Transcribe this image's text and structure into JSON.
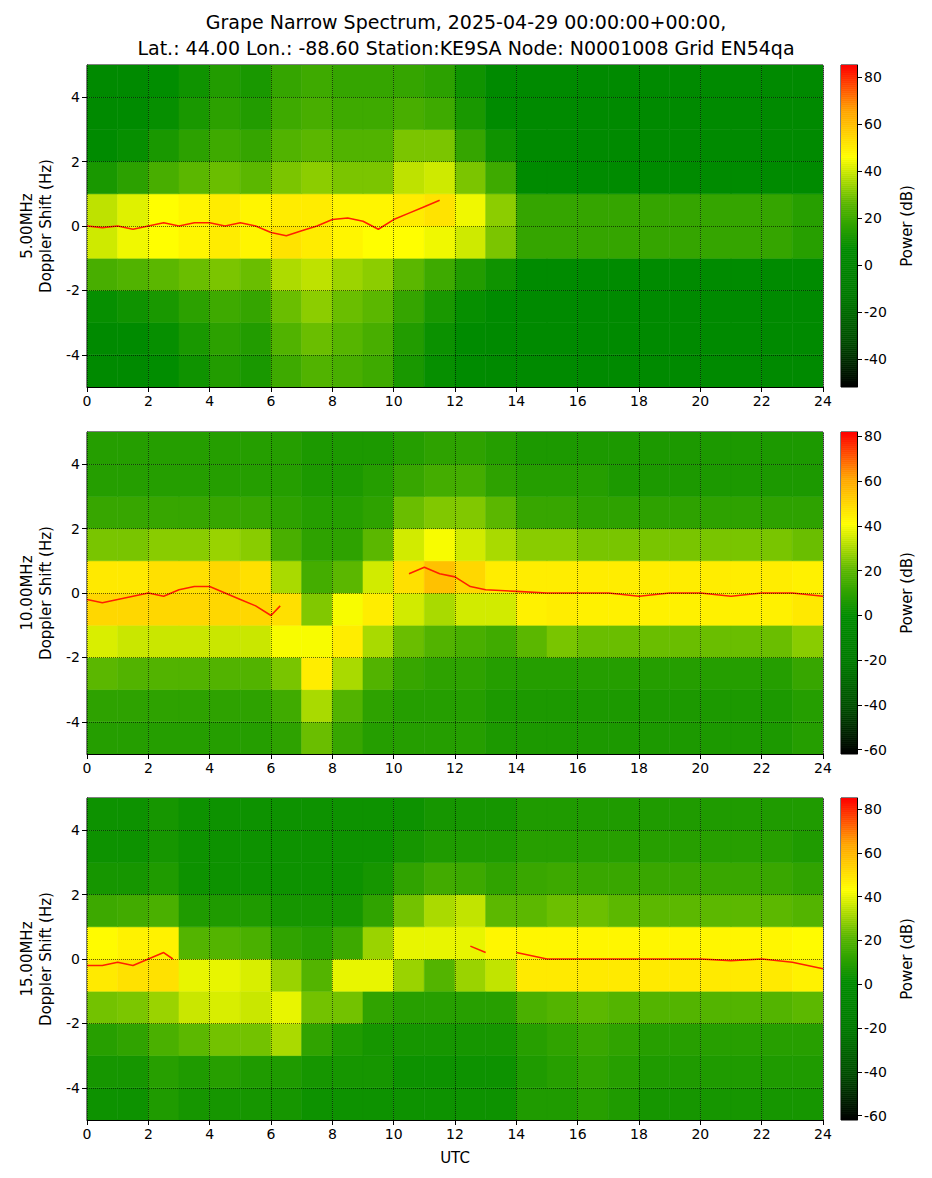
{
  "chart_data": [
    {
      "type": "heatmap",
      "title": "Grape Narrow Spectrum, 2025-04-29 00:00:00+00:00,\nLat.: 44.00 Lon.: -88.60 Station:KE9SA Node: N0001008 Grid EN54qa",
      "ylabel": "5.00MHz\nDoppler Shift (Hz)",
      "xlim": [
        0,
        24
      ],
      "xticks": [
        0,
        2,
        4,
        6,
        8,
        10,
        12,
        14,
        16,
        18,
        20,
        22,
        24
      ],
      "ylim": [
        -5,
        5
      ],
      "yticks": [
        -4,
        -2,
        0,
        2,
        4
      ],
      "grid": true,
      "cells": {
        "x": [
          0.5,
          1.5,
          2.5,
          3.5,
          4.5,
          5.5,
          6.5,
          7.5,
          8.5,
          9.5,
          10.5,
          11.5,
          12.5,
          13.5,
          14.5,
          15.5,
          16.5,
          17.5,
          18.5,
          19.5,
          20.5,
          21.5,
          22.5,
          23.5
        ],
        "y": [
          -4.5,
          -3.5,
          -2.5,
          -1.5,
          -0.5,
          0.5,
          1.5,
          2.5,
          3.5,
          4.5
        ],
        "values": [
          [
            5,
            5,
            7,
            10,
            14,
            12,
            20,
            24,
            22,
            20,
            12,
            8,
            6,
            5,
            5,
            5,
            5,
            5,
            5,
            5,
            5,
            5,
            5,
            5
          ],
          [
            5,
            6,
            8,
            12,
            16,
            14,
            24,
            28,
            25,
            22,
            14,
            9,
            6,
            5,
            5,
            5,
            5,
            5,
            5,
            5,
            5,
            5,
            5,
            5
          ],
          [
            8,
            10,
            12,
            16,
            20,
            18,
            28,
            32,
            28,
            26,
            18,
            12,
            8,
            6,
            5,
            5,
            5,
            5,
            5,
            5,
            5,
            5,
            5,
            5
          ],
          [
            22,
            24,
            26,
            28,
            30,
            28,
            36,
            38,
            34,
            32,
            26,
            20,
            14,
            10,
            6,
            6,
            6,
            6,
            6,
            6,
            6,
            6,
            6,
            6
          ],
          [
            40,
            44,
            46,
            48,
            50,
            48,
            52,
            50,
            48,
            46,
            46,
            44,
            40,
            30,
            18,
            18,
            18,
            18,
            18,
            18,
            18,
            18,
            18,
            15
          ],
          [
            38,
            42,
            46,
            48,
            50,
            48,
            50,
            50,
            48,
            48,
            50,
            52,
            44,
            32,
            18,
            18,
            18,
            18,
            18,
            18,
            18,
            18,
            18,
            15
          ],
          [
            12,
            16,
            22,
            26,
            28,
            26,
            30,
            32,
            30,
            30,
            38,
            40,
            30,
            20,
            6,
            6,
            6,
            6,
            6,
            6,
            6,
            6,
            6,
            6
          ],
          [
            6,
            8,
            12,
            16,
            20,
            18,
            24,
            26,
            24,
            24,
            30,
            30,
            18,
            10,
            5,
            5,
            5,
            5,
            5,
            5,
            5,
            5,
            5,
            5
          ],
          [
            5,
            6,
            8,
            12,
            16,
            14,
            20,
            22,
            20,
            20,
            22,
            20,
            12,
            6,
            5,
            5,
            5,
            5,
            5,
            5,
            5,
            5,
            5,
            5
          ],
          [
            5,
            5,
            7,
            10,
            14,
            12,
            18,
            20,
            18,
            18,
            18,
            16,
            10,
            5,
            5,
            5,
            5,
            5,
            5,
            5,
            5,
            5,
            5,
            5
          ]
        ]
      },
      "series": [
        {
          "type": "line",
          "color": "#ff2000",
          "x": [
            0,
            0.5,
            1,
            1.5,
            2,
            2.5,
            3,
            3.5,
            4,
            4.5,
            5,
            5.5,
            6,
            6.5,
            7,
            7.5,
            8,
            8.5,
            9,
            9.5,
            10,
            10.5,
            11,
            11.5
          ],
          "values": [
            0,
            -0.05,
            0,
            -0.1,
            0,
            0.1,
            0,
            0.1,
            0.1,
            0,
            0.1,
            0,
            -0.2,
            -0.3,
            -0.15,
            0,
            0.2,
            0.25,
            0.15,
            -0.1,
            0.2,
            0.4,
            0.6,
            0.8
          ]
        }
      ],
      "colorbar": {
        "label": "Power (dB)",
        "lim": [
          -52,
          85
        ],
        "ticks": [
          -40,
          -20,
          0,
          20,
          40,
          60,
          80
        ]
      }
    },
    {
      "type": "heatmap",
      "ylabel": "10.00MHz\nDoppler Shift (Hz)",
      "xlim": [
        0,
        24
      ],
      "xticks": [
        0,
        2,
        4,
        6,
        8,
        10,
        12,
        14,
        16,
        18,
        20,
        22,
        24
      ],
      "ylim": [
        -5,
        5
      ],
      "yticks": [
        -4,
        -2,
        0,
        2,
        4
      ],
      "grid": true,
      "cells": {
        "x": [
          0.5,
          1.5,
          2.5,
          3.5,
          4.5,
          5.5,
          6.5,
          7.5,
          8.5,
          9.5,
          10.5,
          11.5,
          12.5,
          13.5,
          14.5,
          15.5,
          16.5,
          17.5,
          18.5,
          19.5,
          20.5,
          21.5,
          22.5,
          23.5
        ],
        "y": [
          -4.5,
          -3.5,
          -2.5,
          -1.5,
          -0.5,
          0.5,
          1.5,
          2.5,
          3.5,
          4.5
        ],
        "values": [
          [
            8,
            8,
            8,
            8,
            8,
            8,
            10,
            22,
            12,
            8,
            8,
            8,
            8,
            6,
            6,
            6,
            6,
            6,
            6,
            6,
            6,
            6,
            6,
            8
          ],
          [
            10,
            10,
            10,
            10,
            10,
            10,
            14,
            30,
            18,
            10,
            8,
            8,
            8,
            6,
            6,
            6,
            6,
            6,
            6,
            6,
            6,
            6,
            6,
            8
          ],
          [
            20,
            18,
            18,
            18,
            18,
            18,
            24,
            45,
            30,
            18,
            12,
            10,
            10,
            8,
            8,
            8,
            8,
            8,
            8,
            8,
            8,
            8,
            8,
            12
          ],
          [
            36,
            34,
            34,
            34,
            34,
            34,
            40,
            40,
            45,
            30,
            22,
            18,
            16,
            14,
            20,
            24,
            22,
            22,
            22,
            22,
            22,
            22,
            22,
            26
          ],
          [
            50,
            50,
            50,
            50,
            50,
            50,
            48,
            25,
            40,
            45,
            35,
            30,
            35,
            35,
            44,
            45,
            44,
            44,
            44,
            44,
            44,
            44,
            44,
            46
          ],
          [
            46,
            46,
            48,
            48,
            50,
            48,
            30,
            15,
            20,
            35,
            48,
            55,
            50,
            45,
            45,
            45,
            45,
            45,
            45,
            45,
            45,
            45,
            45,
            44
          ],
          [
            24,
            24,
            26,
            26,
            28,
            26,
            16,
            10,
            10,
            20,
            35,
            40,
            35,
            30,
            26,
            26,
            24,
            24,
            24,
            24,
            24,
            24,
            24,
            22
          ],
          [
            12,
            12,
            12,
            12,
            12,
            12,
            10,
            8,
            8,
            10,
            22,
            25,
            25,
            20,
            12,
            12,
            10,
            10,
            10,
            10,
            10,
            10,
            10,
            10
          ],
          [
            8,
            8,
            8,
            8,
            8,
            8,
            8,
            6,
            6,
            8,
            12,
            15,
            15,
            10,
            8,
            8,
            8,
            6,
            6,
            6,
            6,
            6,
            6,
            6
          ],
          [
            8,
            8,
            8,
            8,
            8,
            8,
            8,
            6,
            6,
            6,
            8,
            10,
            10,
            8,
            6,
            6,
            6,
            6,
            6,
            6,
            6,
            6,
            6,
            6
          ]
        ]
      },
      "series": [
        {
          "type": "line",
          "color": "#ff2000",
          "x": [
            0,
            0.5,
            1,
            1.5,
            2,
            2.5,
            3,
            3.5,
            4,
            4.5,
            5,
            5.5,
            6,
            6.3,
            6.5,
            10.5,
            11,
            11.5,
            12,
            12.5,
            13,
            14,
            15,
            16,
            17,
            18,
            19,
            20,
            21,
            22,
            23,
            24
          ],
          "values": [
            -0.2,
            -0.3,
            -0.2,
            -0.1,
            0,
            -0.1,
            0.1,
            0.2,
            0.2,
            0,
            -0.2,
            -0.4,
            -0.7,
            -0.4,
            null,
            0.6,
            0.8,
            0.6,
            0.5,
            0.2,
            0.1,
            0.05,
            0,
            0,
            0,
            -0.1,
            0,
            0,
            -0.1,
            0,
            0,
            -0.1
          ]
        }
      ],
      "colorbar": {
        "label": "Power (dB)",
        "lim": [
          -62,
          82
        ],
        "ticks": [
          -60,
          -40,
          -20,
          0,
          20,
          40,
          60,
          80
        ]
      }
    },
    {
      "type": "heatmap",
      "ylabel": "15.00MHz\nDoppler Shift (Hz)",
      "xlabel": "UTC",
      "xlim": [
        0,
        24
      ],
      "xticks": [
        0,
        2,
        4,
        6,
        8,
        10,
        12,
        14,
        16,
        18,
        20,
        22,
        24
      ],
      "ylim": [
        -5,
        5
      ],
      "yticks": [
        -4,
        -2,
        0,
        2,
        4
      ],
      "grid": true,
      "cells": {
        "x": [
          0.5,
          1.5,
          2.5,
          3.5,
          4.5,
          5.5,
          6.5,
          7.5,
          8.5,
          9.5,
          10.5,
          11.5,
          12.5,
          13.5,
          14.5,
          15.5,
          16.5,
          17.5,
          18.5,
          19.5,
          20.5,
          21.5,
          22.5,
          23.5
        ],
        "y": [
          -4.5,
          -3.5,
          -2.5,
          -1.5,
          -0.5,
          0.5,
          1.5,
          2.5,
          3.5,
          4.5
        ],
        "values": [
          [
            4,
            4,
            8,
            6,
            6,
            6,
            6,
            4,
            4,
            4,
            4,
            4,
            4,
            4,
            8,
            8,
            10,
            8,
            6,
            6,
            6,
            6,
            6,
            6
          ],
          [
            6,
            6,
            10,
            8,
            10,
            8,
            8,
            6,
            6,
            6,
            4,
            4,
            4,
            4,
            8,
            10,
            12,
            10,
            8,
            8,
            8,
            8,
            8,
            8
          ],
          [
            10,
            12,
            18,
            22,
            25,
            25,
            32,
            12,
            8,
            6,
            6,
            6,
            6,
            6,
            10,
            12,
            14,
            12,
            10,
            10,
            10,
            10,
            10,
            10
          ],
          [
            25,
            26,
            30,
            36,
            38,
            36,
            40,
            25,
            25,
            12,
            10,
            10,
            10,
            10,
            18,
            20,
            22,
            20,
            20,
            20,
            20,
            20,
            20,
            22
          ],
          [
            48,
            50,
            50,
            40,
            40,
            38,
            30,
            20,
            40,
            40,
            30,
            20,
            30,
            35,
            48,
            48,
            48,
            48,
            48,
            48,
            48,
            48,
            48,
            46
          ],
          [
            44,
            46,
            46,
            20,
            20,
            18,
            12,
            10,
            15,
            30,
            40,
            40,
            40,
            45,
            45,
            45,
            45,
            45,
            45,
            45,
            45,
            45,
            45,
            44
          ],
          [
            15,
            16,
            18,
            8,
            8,
            8,
            6,
            6,
            6,
            12,
            25,
            32,
            35,
            22,
            22,
            24,
            24,
            22,
            22,
            22,
            22,
            22,
            22,
            20
          ],
          [
            6,
            6,
            8,
            4,
            4,
            4,
            4,
            4,
            4,
            6,
            12,
            16,
            15,
            12,
            14,
            15,
            14,
            14,
            14,
            14,
            14,
            14,
            14,
            12
          ],
          [
            4,
            4,
            6,
            4,
            4,
            4,
            4,
            4,
            4,
            4,
            6,
            8,
            8,
            8,
            10,
            10,
            10,
            10,
            10,
            10,
            10,
            10,
            10,
            8
          ],
          [
            4,
            4,
            6,
            4,
            4,
            4,
            4,
            4,
            4,
            4,
            4,
            6,
            6,
            6,
            8,
            8,
            8,
            8,
            8,
            8,
            8,
            8,
            8,
            8
          ]
        ]
      },
      "series": [
        {
          "type": "line",
          "color": "#ff2000",
          "x": [
            0,
            0.5,
            1,
            1.5,
            2,
            2.5,
            2.8,
            3,
            12.5,
            13,
            13.5,
            14,
            15,
            16,
            17,
            18,
            19,
            20,
            21,
            22,
            23,
            24
          ],
          "values": [
            -0.2,
            -0.2,
            -0.1,
            -0.2,
            0,
            0.2,
            0,
            null,
            0.4,
            0.2,
            null,
            0.2,
            0,
            0,
            0,
            0,
            0,
            0,
            -0.05,
            0,
            -0.1,
            -0.3
          ]
        }
      ],
      "colorbar": {
        "label": "Power (dB)",
        "lim": [
          -62,
          85
        ],
        "ticks": [
          -60,
          -40,
          -20,
          0,
          20,
          40,
          60,
          80
        ]
      }
    }
  ]
}
